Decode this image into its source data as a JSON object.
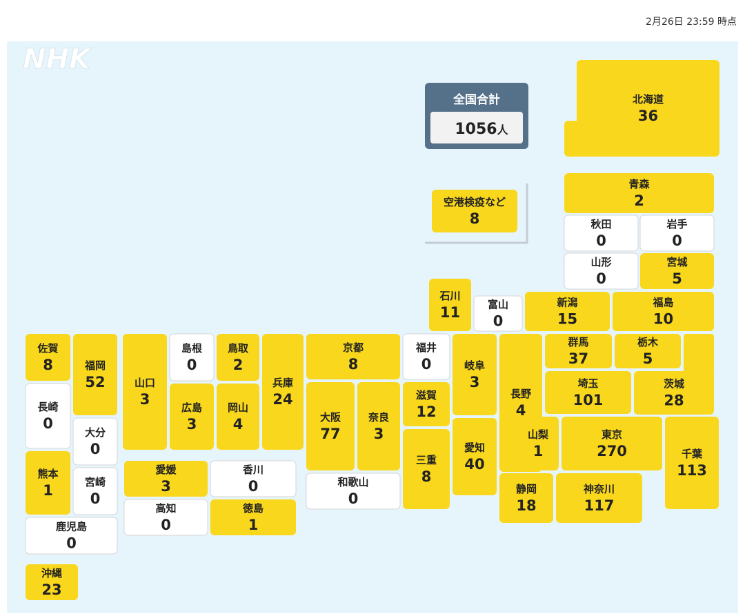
{
  "header": {
    "timestamp": "2月26日 23:59 時点"
  },
  "logo": "NHK",
  "total": {
    "label": "全国合計",
    "value": 1056,
    "unit": "人"
  },
  "tiles": [
    {
      "name": "北海道",
      "value": 36
    },
    {
      "name": "青森",
      "value": 2
    },
    {
      "name": "秋田",
      "value": 0
    },
    {
      "name": "岩手",
      "value": 0
    },
    {
      "name": "山形",
      "value": 0
    },
    {
      "name": "宮城",
      "value": 5
    },
    {
      "name": "石川",
      "value": 11
    },
    {
      "name": "富山",
      "value": 0
    },
    {
      "name": "新潟",
      "value": 15
    },
    {
      "name": "福島",
      "value": 10
    },
    {
      "name": "佐賀",
      "value": 8
    },
    {
      "name": "福岡",
      "value": 52
    },
    {
      "name": "山口",
      "value": 3
    },
    {
      "name": "島根",
      "value": 0
    },
    {
      "name": "鳥取",
      "value": 2
    },
    {
      "name": "兵庫",
      "value": 24
    },
    {
      "name": "京都",
      "value": 8
    },
    {
      "name": "福井",
      "value": 0
    },
    {
      "name": "岐阜",
      "value": 3
    },
    {
      "name": "長野",
      "value": 4
    },
    {
      "name": "群馬",
      "value": 37
    },
    {
      "name": "栃木",
      "value": 5
    },
    {
      "name": "茨城",
      "value": 28
    },
    {
      "name": "長崎",
      "value": 0
    },
    {
      "name": "大分",
      "value": 0
    },
    {
      "name": "熊本",
      "value": 1
    },
    {
      "name": "宮崎",
      "value": 0
    },
    {
      "name": "鹿児島",
      "value": 0
    },
    {
      "name": "沖縄",
      "value": 23
    },
    {
      "name": "広島",
      "value": 3
    },
    {
      "name": "岡山",
      "value": 4
    },
    {
      "name": "大阪",
      "value": 77
    },
    {
      "name": "奈良",
      "value": 3
    },
    {
      "name": "滋賀",
      "value": 12
    },
    {
      "name": "三重",
      "value": 8
    },
    {
      "name": "愛知",
      "value": 40
    },
    {
      "name": "山梨",
      "value": 1
    },
    {
      "name": "埼玉",
      "value": 101
    },
    {
      "name": "東京",
      "value": 270
    },
    {
      "name": "千葉",
      "value": 113
    },
    {
      "name": "静岡",
      "value": 18
    },
    {
      "name": "神奈川",
      "value": 117
    },
    {
      "name": "和歌山",
      "value": 0
    },
    {
      "name": "愛媛",
      "value": 3
    },
    {
      "name": "香川",
      "value": 0
    },
    {
      "name": "高知",
      "value": 0
    },
    {
      "name": "徳島",
      "value": 1
    },
    {
      "name": "空港検疫など",
      "value": 8
    }
  ]
}
